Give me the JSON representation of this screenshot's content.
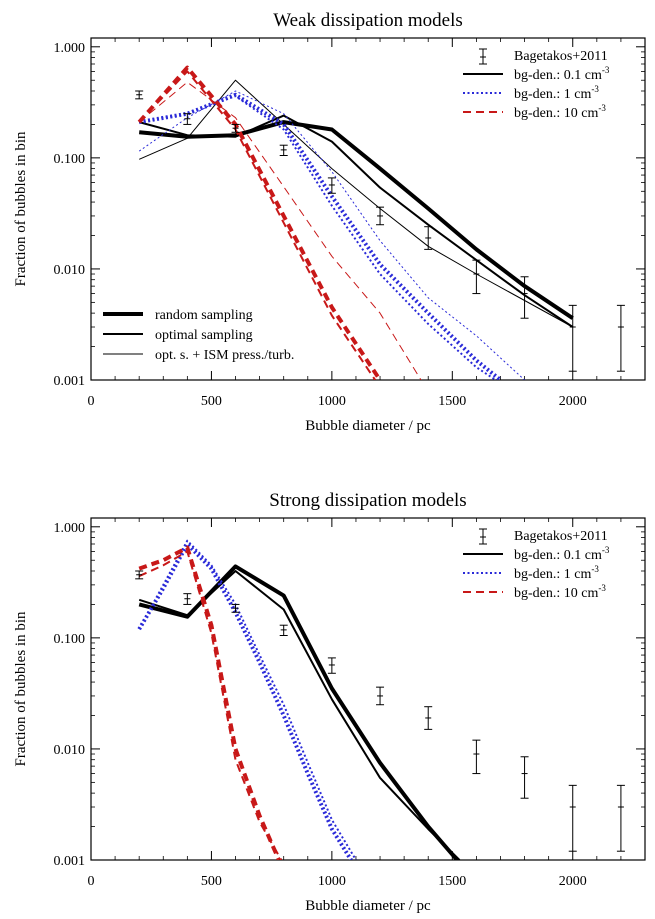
{
  "chart_data": [
    {
      "type": "line",
      "title": "Weak dissipation models",
      "xlabel": "Bubble diameter / pc",
      "ylabel": "Fraction of bubbles in bin",
      "xlim": [
        0,
        2300
      ],
      "ylim": [
        0.001,
        1.2
      ],
      "yscale": "log",
      "x_ticks": [
        "0",
        "500",
        "1000",
        "1500",
        "2000"
      ],
      "y_ticks": [
        "0.001",
        "0.010",
        "0.100",
        "1.000"
      ],
      "legend_top": {
        "position": "top-right",
        "entries": [
          {
            "label": "Bagetakos+2011",
            "style": "errorbar"
          },
          {
            "label": "bg-den.: 0.1 cm",
            "sup": "-3",
            "style": "solid",
            "color": "#000000"
          },
          {
            "label": "bg-den.: 1 cm",
            "sup": "-3",
            "style": "dotted",
            "color": "#2a2ad8"
          },
          {
            "label": "bg-den.: 10 cm",
            "sup": "-3",
            "style": "dashed",
            "color": "#c81818"
          }
        ]
      },
      "legend_bottom": {
        "position": "bottom-left",
        "entries": [
          {
            "label": "random sampling",
            "width": "thick"
          },
          {
            "label": "optimal sampling",
            "width": "medium"
          },
          {
            "label": "opt. s. + ISM press./turb.",
            "width": "thin"
          }
        ]
      },
      "observations": {
        "name": "Bagetakos+2011",
        "x": [
          200,
          400,
          600,
          800,
          1000,
          1200,
          1400,
          1600,
          1800,
          2000,
          2200
        ],
        "y": [
          0.37,
          0.225,
          0.185,
          0.118,
          0.057,
          0.03,
          0.019,
          0.009,
          0.006,
          0.003,
          0.003
        ],
        "ylo": [
          0.34,
          0.2,
          0.17,
          0.105,
          0.048,
          0.025,
          0.015,
          0.006,
          0.0036,
          0.0012,
          0.0012
        ],
        "yhi": [
          0.4,
          0.25,
          0.2,
          0.13,
          0.066,
          0.036,
          0.024,
          0.012,
          0.0085,
          0.0047,
          0.0047
        ]
      },
      "series": [
        {
          "density": "0.1",
          "sampling": "random",
          "color": "#000000",
          "dash": "solid",
          "width": "thick",
          "x": [
            200,
            400,
            600,
            800,
            1000,
            1200,
            1400,
            1600,
            1800,
            2000
          ],
          "y": [
            0.17,
            0.155,
            0.16,
            0.21,
            0.18,
            0.08,
            0.035,
            0.015,
            0.007,
            0.0036
          ]
        },
        {
          "density": "0.1",
          "sampling": "optimal",
          "color": "#000000",
          "dash": "solid",
          "width": "medium",
          "x": [
            200,
            400,
            600,
            800,
            1000,
            1200,
            1400,
            1600,
            1800,
            2000
          ],
          "y": [
            0.21,
            0.16,
            0.155,
            0.24,
            0.14,
            0.054,
            0.025,
            0.012,
            0.0058,
            0.003
          ]
        },
        {
          "density": "0.1",
          "sampling": "ism",
          "color": "#000000",
          "dash": "solid",
          "width": "thin",
          "x": [
            200,
            400,
            600,
            800,
            1000,
            1200,
            1400,
            1600,
            1800,
            2000
          ],
          "y": [
            0.097,
            0.15,
            0.5,
            0.2,
            0.08,
            0.035,
            0.016,
            0.009,
            0.0052,
            0.003
          ]
        },
        {
          "density": "1",
          "sampling": "random",
          "color": "#2a2ad8",
          "dash": "dotted",
          "width": "thick",
          "x": [
            200,
            400,
            600,
            800,
            1000,
            1200,
            1400,
            1600,
            1700
          ],
          "y": [
            0.21,
            0.25,
            0.37,
            0.2,
            0.045,
            0.011,
            0.004,
            0.0015,
            0.001
          ]
        },
        {
          "density": "1",
          "sampling": "optimal",
          "color": "#2a2ad8",
          "dash": "dotted",
          "width": "medium",
          "x": [
            200,
            400,
            600,
            800,
            1000,
            1200,
            1400,
            1600,
            1680
          ],
          "y": [
            0.21,
            0.25,
            0.36,
            0.18,
            0.037,
            0.009,
            0.0032,
            0.0013,
            0.001
          ]
        },
        {
          "density": "1",
          "sampling": "ism",
          "color": "#2a2ad8",
          "dash": "dotted",
          "width": "thin",
          "x": [
            200,
            400,
            600,
            800,
            1000,
            1200,
            1400,
            1600,
            1800
          ],
          "y": [
            0.115,
            0.23,
            0.4,
            0.25,
            0.075,
            0.018,
            0.0055,
            0.0025,
            0.001
          ]
        },
        {
          "density": "10",
          "sampling": "random",
          "color": "#c81818",
          "dash": "dashed",
          "width": "thick",
          "x": [
            200,
            400,
            600,
            800,
            1000,
            1200
          ],
          "y": [
            0.21,
            0.65,
            0.2,
            0.03,
            0.0045,
            0.001
          ]
        },
        {
          "density": "10",
          "sampling": "optimal",
          "color": "#c81818",
          "dash": "dashed",
          "width": "medium",
          "x": [
            200,
            400,
            600,
            800,
            1000,
            1180
          ],
          "y": [
            0.21,
            0.6,
            0.18,
            0.026,
            0.0038,
            0.001
          ]
        },
        {
          "density": "10",
          "sampling": "ism",
          "color": "#c81818",
          "dash": "dashed",
          "width": "thin",
          "x": [
            200,
            400,
            600,
            800,
            1000,
            1200,
            1370
          ],
          "y": [
            0.21,
            0.48,
            0.23,
            0.055,
            0.013,
            0.004,
            0.001
          ]
        }
      ]
    },
    {
      "type": "line",
      "title": "Strong dissipation models",
      "xlabel": "Bubble diameter / pc",
      "ylabel": "Fraction of bubbles in bin",
      "xlim": [
        0,
        2300
      ],
      "ylim": [
        0.001,
        1.2
      ],
      "yscale": "log",
      "x_ticks": [
        "0",
        "500",
        "1000",
        "1500",
        "2000"
      ],
      "y_ticks": [
        "0.001",
        "0.010",
        "0.100",
        "1.000"
      ],
      "legend_top": {
        "position": "top-right",
        "entries": [
          {
            "label": "Bagetakos+2011",
            "style": "errorbar"
          },
          {
            "label": "bg-den.: 0.1 cm",
            "sup": "-3",
            "style": "solid",
            "color": "#000000"
          },
          {
            "label": "bg-den.: 1 cm",
            "sup": "-3",
            "style": "dotted",
            "color": "#2a2ad8"
          },
          {
            "label": "bg-den.: 10 cm",
            "sup": "-3",
            "style": "dashed",
            "color": "#c81818"
          }
        ]
      },
      "observations": {
        "name": "Bagetakos+2011",
        "x": [
          200,
          400,
          600,
          800,
          1000,
          1200,
          1400,
          1600,
          1800,
          2000,
          2200
        ],
        "y": [
          0.37,
          0.225,
          0.185,
          0.118,
          0.057,
          0.03,
          0.019,
          0.009,
          0.006,
          0.003,
          0.003
        ],
        "ylo": [
          0.34,
          0.2,
          0.17,
          0.105,
          0.048,
          0.025,
          0.015,
          0.006,
          0.0036,
          0.0012,
          0.0012
        ],
        "yhi": [
          0.4,
          0.25,
          0.2,
          0.13,
          0.066,
          0.036,
          0.024,
          0.012,
          0.0085,
          0.0047,
          0.0047
        ]
      },
      "series": [
        {
          "density": "0.1",
          "sampling": "random",
          "color": "#000000",
          "dash": "solid",
          "width": "thick",
          "x": [
            200,
            400,
            600,
            800,
            1000,
            1200,
            1400,
            1520
          ],
          "y": [
            0.2,
            0.155,
            0.44,
            0.24,
            0.035,
            0.0075,
            0.002,
            0.001
          ]
        },
        {
          "density": "0.1",
          "sampling": "optimal",
          "color": "#000000",
          "dash": "solid",
          "width": "medium",
          "x": [
            200,
            400,
            600,
            800,
            1000,
            1200,
            1400,
            1530
          ],
          "y": [
            0.22,
            0.16,
            0.4,
            0.18,
            0.028,
            0.0055,
            0.0019,
            0.001
          ]
        },
        {
          "density": "1",
          "sampling": "random",
          "color": "#2a2ad8",
          "dash": "dotted",
          "width": "thick",
          "x": [
            200,
            300,
            400,
            500,
            600,
            700,
            800,
            900,
            1000,
            1080
          ],
          "y": [
            0.12,
            0.28,
            0.7,
            0.42,
            0.17,
            0.06,
            0.02,
            0.006,
            0.0019,
            0.001
          ]
        },
        {
          "density": "1",
          "sampling": "optimal",
          "color": "#2a2ad8",
          "dash": "dotted",
          "width": "medium",
          "x": [
            200,
            300,
            400,
            500,
            600,
            700,
            800,
            900,
            1000,
            1100
          ],
          "y": [
            0.12,
            0.3,
            0.75,
            0.45,
            0.2,
            0.07,
            0.025,
            0.0075,
            0.0023,
            0.001
          ]
        },
        {
          "density": "10",
          "sampling": "random",
          "color": "#c81818",
          "dash": "dashed",
          "width": "thick",
          "x": [
            200,
            300,
            400,
            500,
            600,
            700,
            780
          ],
          "y": [
            0.42,
            0.5,
            0.65,
            0.13,
            0.01,
            0.0025,
            0.001
          ]
        },
        {
          "density": "10",
          "sampling": "optimal",
          "color": "#c81818",
          "dash": "dashed",
          "width": "medium",
          "x": [
            200,
            300,
            400,
            500,
            600,
            700,
            790
          ],
          "y": [
            0.36,
            0.45,
            0.6,
            0.11,
            0.008,
            0.0022,
            0.001
          ]
        }
      ]
    }
  ]
}
